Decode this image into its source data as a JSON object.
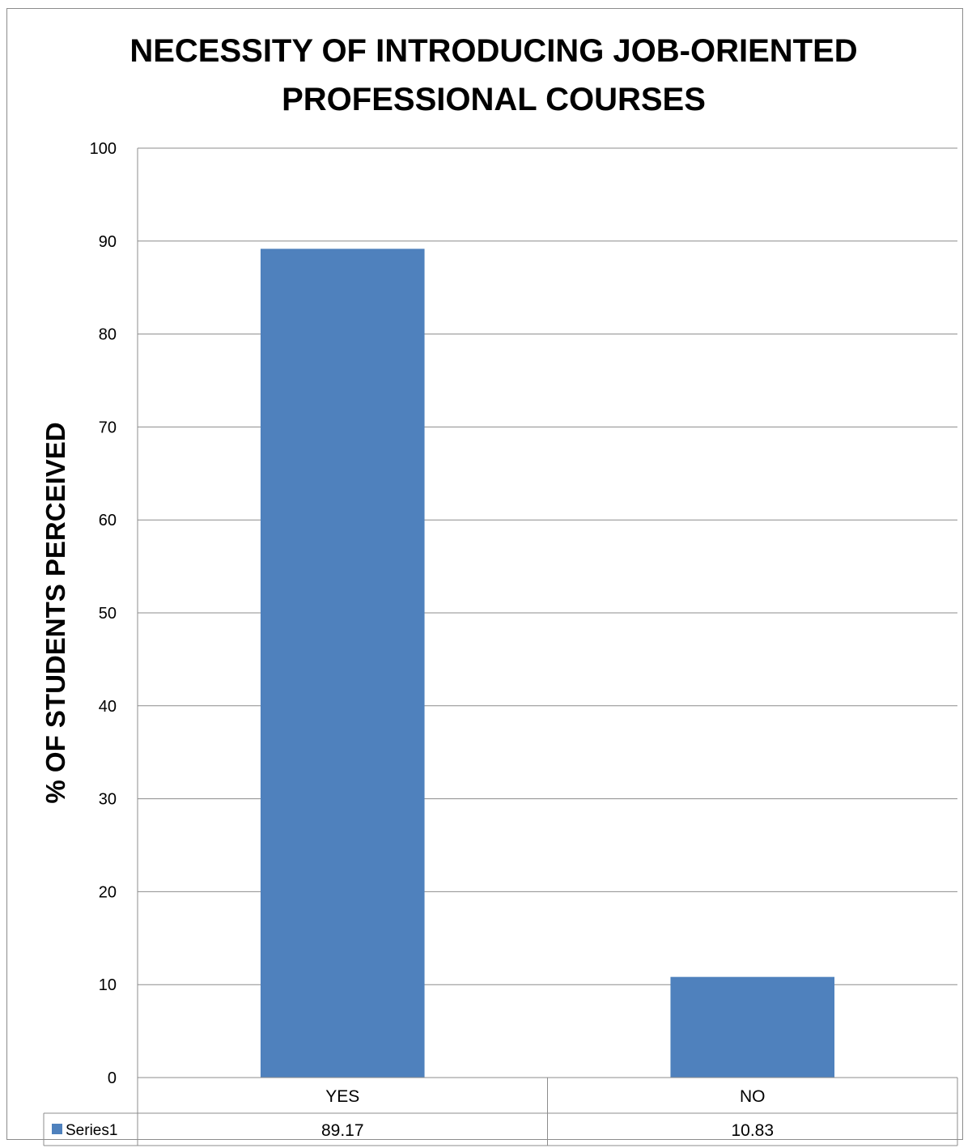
{
  "chart_data": {
    "type": "bar",
    "title_lines": [
      "NECESSITY OF INTRODUCING JOB-ORIENTED",
      "PROFESSIONAL COURSES"
    ],
    "ylabel": "% OF STUDENTS PERCEIVED",
    "xlabel": "",
    "categories": [
      "YES",
      "NO"
    ],
    "series": [
      {
        "name": "Series1",
        "values": [
          89.17,
          10.83
        ],
        "color": "#4f81bd"
      }
    ],
    "ylim": [
      0,
      100
    ],
    "yticks": [
      "0",
      "10",
      "20",
      "30",
      "40",
      "50",
      "60",
      "70",
      "80",
      "90",
      "100"
    ],
    "data_table": {
      "rows": [
        {
          "label": "Series1",
          "values": [
            "89.17",
            "10.83"
          ]
        }
      ]
    },
    "grid": true,
    "legend": "data-table"
  }
}
